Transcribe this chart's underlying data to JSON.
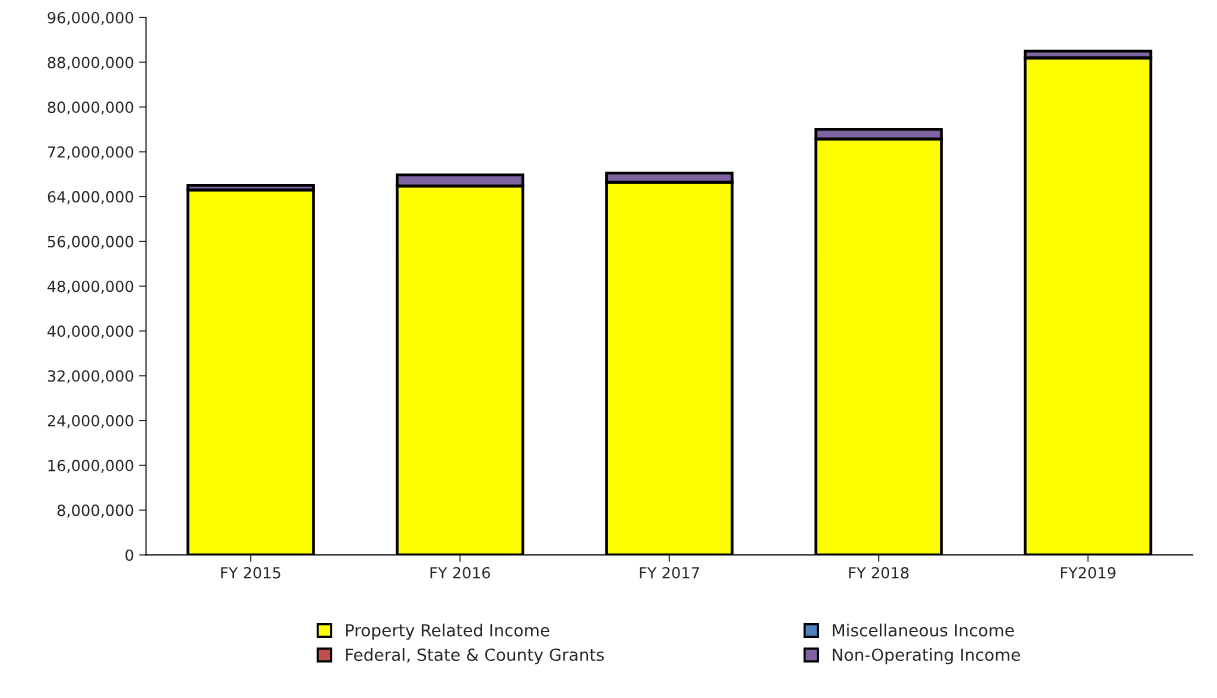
{
  "chart_data": {
    "type": "bar",
    "stacked": true,
    "categories": [
      "FY 2015",
      "FY 2016",
      "FY 2017",
      "FY 2018",
      "FY2019"
    ],
    "series": [
      {
        "name": "Property Related Income",
        "color": "#ffff00",
        "values": [
          65200000,
          65900000,
          66600000,
          74300000,
          88800000
        ]
      },
      {
        "name": "Federal, State & County Grants",
        "color": "#c0504d",
        "values": [
          0,
          0,
          0,
          0,
          0
        ]
      },
      {
        "name": "Miscellaneous Income",
        "color": "#4f81bd",
        "values": [
          null,
          null,
          null,
          null,
          null
        ]
      },
      {
        "name": "Non-Operating Income",
        "color": "#8064a2",
        "values": [
          800000,
          2000000,
          1600000,
          1700000,
          1200000
        ]
      }
    ],
    "ylim": [
      0,
      96000000
    ],
    "yticks": [
      {
        "value": 0,
        "label": "0"
      },
      {
        "value": 8000000,
        "label": "8,000,000"
      },
      {
        "value": 16000000,
        "label": "16,000,000"
      },
      {
        "value": 24000000,
        "label": "24,000,000"
      },
      {
        "value": 32000000,
        "label": "32,000,000"
      },
      {
        "value": 40000000,
        "label": "40,000,000"
      },
      {
        "value": 48000000,
        "label": "48,000,000"
      },
      {
        "value": 56000000,
        "label": "56,000,000"
      },
      {
        "value": 64000000,
        "label": "64,000,000"
      },
      {
        "value": 72000000,
        "label": "72,000,000"
      },
      {
        "value": 80000000,
        "label": "80,000,000"
      },
      {
        "value": 88000000,
        "label": "88,000,000"
      },
      {
        "value": 96000000,
        "label": "96,000,000"
      }
    ],
    "grid": false,
    "legend": "bottom"
  }
}
